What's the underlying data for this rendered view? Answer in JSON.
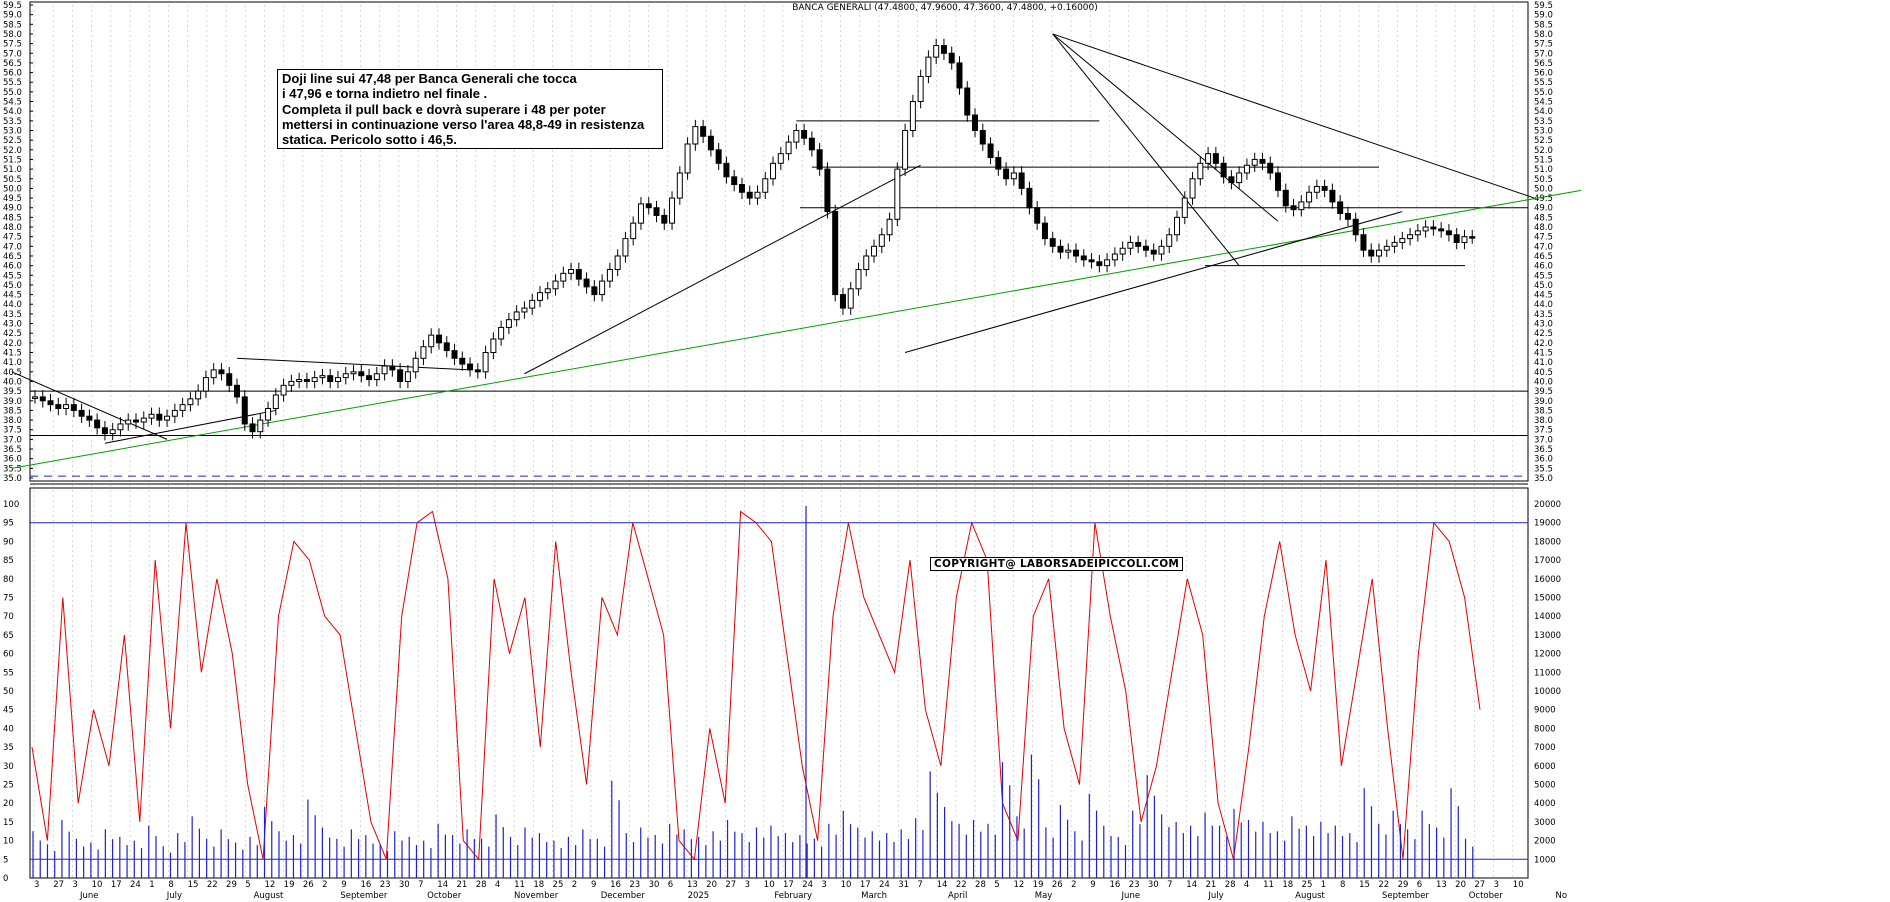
{
  "header": {
    "title": "BANCA GENERALI (47.4800, 47.9600, 47.3600, 47.4800, +0.16000)"
  },
  "annotation": {
    "text": "Doji line sui 47,48 per Banca Generali che tocca\ni 47,96 e torna indietro nel finale .\nCompleta il pull back e dovrà superare i 48 per poter\nmettersi in continuazione verso l'area 48,8-49 in resistenza\nstatica. Pericolo sotto i 46,5."
  },
  "copyright": {
    "text": "COPYRIGHT@ LABORSADEIPICCOLI.COM"
  },
  "colors": {
    "candles": "#000000",
    "trendlines": "#000000",
    "support_line": "#00a000",
    "oscillator": "#e00000",
    "volume": "#2020d0",
    "band": "#2020d0"
  },
  "chart_data": [
    {
      "type": "candlestick",
      "title": "BANCA GENERALI (47.4800, 47.9600, 47.3600, 47.4800, +0.16000)",
      "ylim": [
        35.0,
        59.5
      ],
      "ytick_step": 0.5,
      "ytick_labels": [
        "35.0",
        "35.5",
        "36.0",
        "36.5",
        "37.0",
        "37.5",
        "38.0",
        "38.5",
        "39.0",
        "39.5",
        "40.0",
        "40.5",
        "41.0",
        "41.5",
        "42.0",
        "42.5",
        "43.0",
        "43.5",
        "44.0",
        "44.5",
        "45.0",
        "45.5",
        "46.0",
        "46.5",
        "47.0",
        "47.5",
        "48.0",
        "48.5",
        "49.0",
        "49.5",
        "50.0",
        "50.5",
        "51.0",
        "51.5",
        "52.0",
        "52.5",
        "53.0",
        "53.5",
        "54.0",
        "54.5",
        "55.0",
        "55.5",
        "56.0",
        "56.5",
        "57.0",
        "57.5",
        "58.0",
        "58.5",
        "59.0",
        "59.5"
      ],
      "last": {
        "open": 47.48,
        "high": 47.96,
        "low": 47.36,
        "close": 47.48,
        "change": 0.16
      },
      "x_day_labels": [
        "3",
        "27",
        "3",
        "10",
        "17",
        "24",
        "1",
        "8",
        "15",
        "22",
        "29",
        "5",
        "12",
        "19",
        "26",
        "2",
        "9",
        "16",
        "23",
        "30",
        "7",
        "14",
        "21",
        "28",
        "4",
        "11",
        "18",
        "25",
        "2",
        "9",
        "16",
        "23",
        "30",
        "6",
        "13",
        "20",
        "27",
        "3",
        "10",
        "17",
        "24",
        "3",
        "10",
        "17",
        "24",
        "31",
        "7",
        "14",
        "22",
        "28",
        "5",
        "12",
        "19",
        "26",
        "2",
        "9",
        "16",
        "23",
        "30",
        "7",
        "14",
        "21",
        "28",
        "4",
        "11",
        "18",
        "25",
        "1",
        "8",
        "15",
        "22",
        "29",
        "6",
        "13",
        "20",
        "27",
        "3",
        "10"
      ],
      "x_month_labels": [
        "June",
        "July",
        "August",
        "September",
        "October",
        "November",
        "December",
        "2025",
        "February",
        "March",
        "April",
        "May",
        "June",
        "July",
        "August",
        "September",
        "October",
        "No"
      ],
      "price_closes": [
        39.2,
        39.0,
        38.8,
        38.6,
        38.8,
        38.5,
        38.2,
        38.0,
        37.6,
        37.3,
        37.5,
        37.8,
        38.0,
        37.9,
        38.1,
        38.3,
        38.0,
        38.2,
        38.5,
        38.8,
        39.1,
        39.5,
        40.2,
        40.6,
        40.4,
        39.8,
        39.2,
        37.8,
        37.4,
        38.0,
        38.6,
        39.3,
        39.8,
        40.0,
        40.1,
        40.0,
        40.2,
        40.3,
        40.0,
        40.2,
        40.4,
        40.5,
        40.3,
        40.1,
        40.4,
        40.8,
        40.6,
        40.0,
        40.5,
        41.2,
        41.8,
        42.4,
        42.0,
        41.6,
        41.2,
        40.9,
        40.6,
        40.5,
        41.5,
        42.2,
        42.8,
        43.2,
        43.6,
        43.8,
        44.2,
        44.6,
        44.8,
        45.2,
        45.6,
        45.8,
        45.3,
        44.9,
        44.5,
        45.2,
        45.8,
        46.5,
        47.4,
        48.2,
        49.2,
        49.0,
        48.6,
        48.2,
        49.5,
        50.8,
        52.3,
        53.2,
        52.7,
        52.0,
        51.3,
        50.6,
        50.2,
        49.8,
        49.5,
        49.8,
        50.5,
        51.3,
        51.8,
        52.4,
        53.0,
        52.6,
        52.0,
        51.0,
        48.8,
        44.5,
        43.8,
        44.8,
        45.8,
        46.5,
        47.0,
        47.6,
        48.4,
        51.0,
        53.0,
        54.5,
        55.8,
        56.8,
        57.4,
        57.0,
        56.5,
        55.2,
        53.8,
        53.0,
        52.3,
        51.6,
        51.0,
        50.5,
        50.8,
        50.0,
        49.0,
        48.2,
        47.4,
        47.0,
        46.7,
        46.8,
        46.5,
        46.3,
        46.2,
        46.0,
        46.3,
        46.6,
        46.9,
        47.2,
        47.0,
        46.8,
        46.6,
        47.0,
        47.6,
        48.5,
        49.5,
        50.5,
        51.3,
        51.8,
        51.3,
        50.6,
        50.3,
        50.8,
        51.2,
        51.5,
        51.3,
        50.8,
        49.9,
        49.1,
        48.9,
        49.3,
        49.8,
        50.1,
        49.9,
        49.3,
        48.7,
        48.4,
        47.6,
        46.8,
        46.5,
        46.8,
        47.0,
        47.2,
        47.4,
        47.6,
        47.8,
        48.0,
        47.9,
        47.8,
        47.6,
        47.2,
        47.5,
        47.48
      ],
      "horizontal_levels": [
        39.5,
        37.2,
        49.0,
        46.0
      ],
      "dashed_level": 35.1
    },
    {
      "type": "line",
      "series": [
        {
          "values": [
            35,
            10,
            75,
            20,
            45,
            30,
            65,
            15,
            85,
            40,
            95,
            55,
            80,
            60,
            25,
            5,
            70,
            90,
            85,
            70,
            65,
            40,
            15,
            5,
            70,
            95,
            98,
            80,
            10,
            5,
            80,
            60,
            75,
            35,
            90,
            55,
            25,
            75,
            65,
            95,
            80,
            65,
            10,
            5,
            40,
            20,
            98,
            95,
            90,
            60,
            30,
            10,
            70,
            95,
            75,
            65,
            55,
            85,
            45,
            30,
            75,
            95,
            85,
            20,
            10,
            70,
            80,
            40,
            25,
            95,
            70,
            50,
            15,
            30,
            55,
            80,
            65,
            20,
            5,
            35,
            70,
            90,
            65,
            50,
            85,
            30,
            55,
            80,
            40,
            5,
            60,
            95,
            90,
            75,
            45
          ]
        }
      ],
      "ylim": [
        0,
        100
      ],
      "ytick_labels": [
        "0",
        "5",
        "10",
        "15",
        "20",
        "25",
        "30",
        "35",
        "40",
        "45",
        "50",
        "55",
        "60",
        "65",
        "70",
        "75",
        "80",
        "85",
        "90",
        "95",
        "100"
      ],
      "band_levels": [
        5,
        95
      ]
    },
    {
      "type": "bar",
      "series": [
        {
          "values": [
            2500,
            1800,
            3100,
            2100,
            1900,
            2600,
            2200,
            2000,
            2800,
            1700,
            2400,
            3300,
            2100,
            2600,
            1900,
            2200,
            3800,
            2500,
            2300,
            4200,
            2700,
            2100,
            2600,
            2300,
            1800,
            2500,
            2200,
            2000,
            2900,
            2300,
            2600,
            2100,
            3400,
            2200,
            2700,
            2400,
            2000,
            2200,
            2600,
            2100,
            5200,
            2400,
            2700,
            2300,
            2900,
            2600,
            2200,
            2500,
            3100,
            2400,
            2700,
            2800,
            2400,
            2300,
            2100,
            2900,
            3600,
            2700,
            2500,
            2400,
            2600,
            3200,
            5700,
            3800,
            2900,
            3100,
            2900,
            6200,
            3300,
            6600,
            2700,
            3900,
            2500,
            4500,
            2800,
            2200,
            3600,
            5500,
            3400,
            3000,
            2800,
            3500,
            2800,
            3700,
            3100,
            3000,
            2500,
            3300,
            2800,
            3000,
            2800,
            2400,
            4800,
            2900,
            3600,
            2600,
            3600,
            2700,
            4800,
            2100
          ]
        }
      ],
      "ylim": [
        0,
        20000
      ],
      "ytick_labels": [
        "1000",
        "2000",
        "3000",
        "4000",
        "5000",
        "6000",
        "7000",
        "8000",
        "9000",
        "10000",
        "11000",
        "12000",
        "13000",
        "14000",
        "15000",
        "16000",
        "17000",
        "18000",
        "19000",
        "20000"
      ]
    }
  ]
}
